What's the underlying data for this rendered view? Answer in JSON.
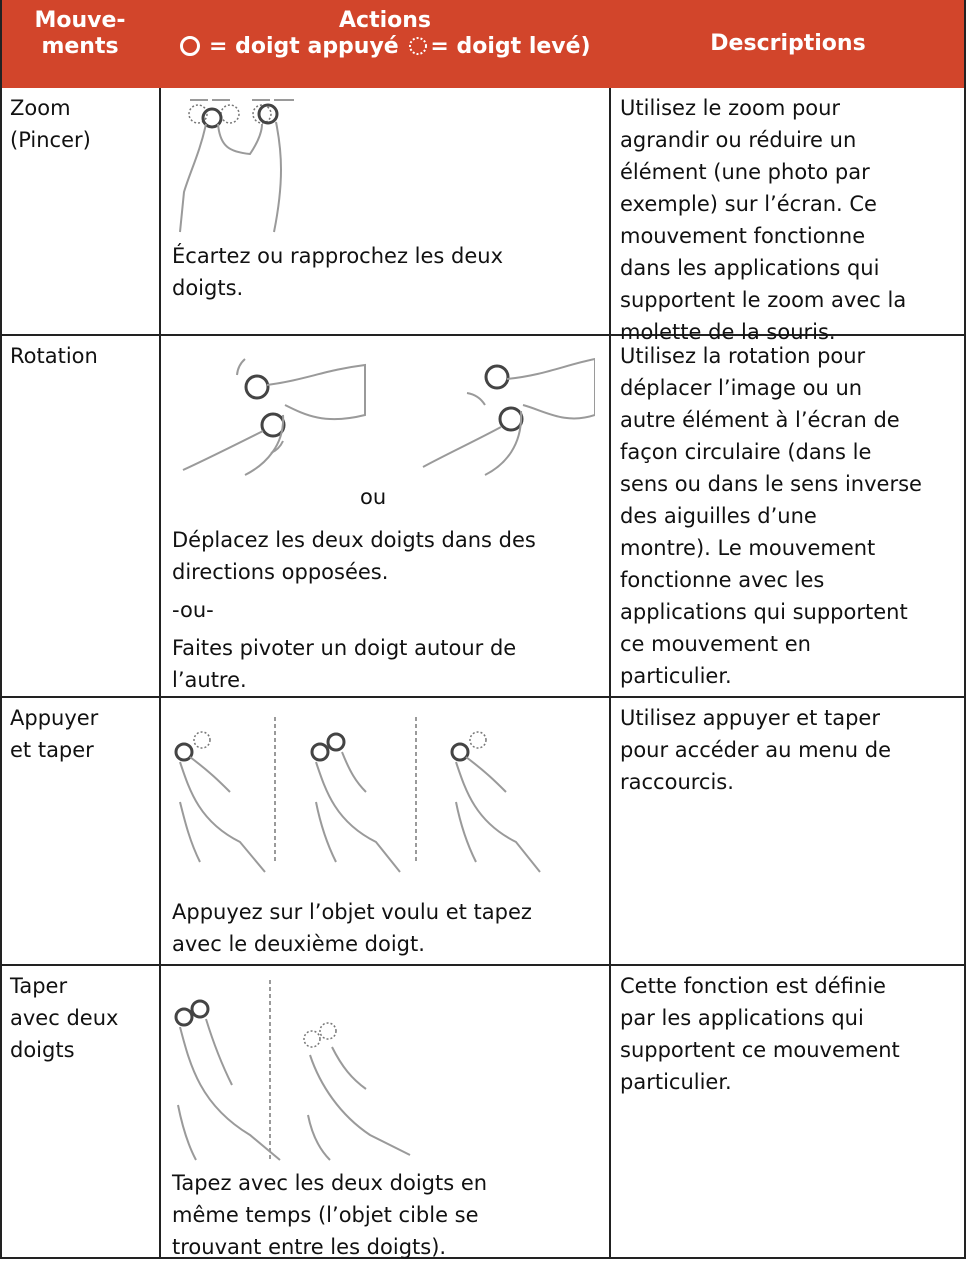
{
  "header": {
    "movements": [
      "Mouve-",
      "ments"
    ],
    "actions": "Actions",
    "legend_pressed": "= doigt appuyé",
    "legend_lifted": "= doigt levé)",
    "descriptions": "Descriptions"
  },
  "rows": [
    {
      "movement": [
        "Zoom",
        "(Pincer)"
      ],
      "action": [
        [
          "Écartez ou rapprochez les deux",
          "doigts."
        ]
      ],
      "description": [
        "Utilisez le zoom pour",
        "agrandir ou réduire un",
        "élément (une photo par",
        "exemple) sur l’écran. Ce",
        "mouvement fonctionne",
        "dans les applications qui",
        "supportent le zoom avec la",
        "molette de la souris."
      ]
    },
    {
      "movement": [
        "Rotation"
      ],
      "separator": "ou",
      "action": [
        [
          "Déplacez les deux doigts dans des",
          "directions opposées."
        ],
        [
          "-ou-"
        ],
        [
          "Faites pivoter un doigt autour de",
          "l’autre."
        ]
      ],
      "description": [
        "Utilisez la rotation pour",
        "déplacer l’image ou un",
        "autre élément à l’écran de",
        "façon circulaire (dans le",
        "sens ou dans le sens inverse",
        "des aiguilles d’une",
        "montre). Le mouvement",
        "fonctionne avec les",
        "applications qui supportent",
        "ce mouvement en",
        "particulier."
      ]
    },
    {
      "movement": [
        "Appuyer",
        "et taper"
      ],
      "action": [
        [
          "Appuyez sur l’objet voulu et tapez",
          "avec le deuxième doigt."
        ]
      ],
      "description": [
        "Utilisez appuyer et taper",
        "pour accéder au menu de",
        "raccourcis."
      ]
    },
    {
      "movement": [
        "Taper",
        "avec deux",
        "doigts"
      ],
      "action": [
        [
          "Tapez avec les deux doigts en",
          "même temps (l’objet cible se",
          "trouvant entre les doigts)."
        ]
      ],
      "description": [
        "Cette fonction est définie",
        "par les applications qui",
        "supportent ce mouvement",
        "particulier."
      ]
    }
  ]
}
